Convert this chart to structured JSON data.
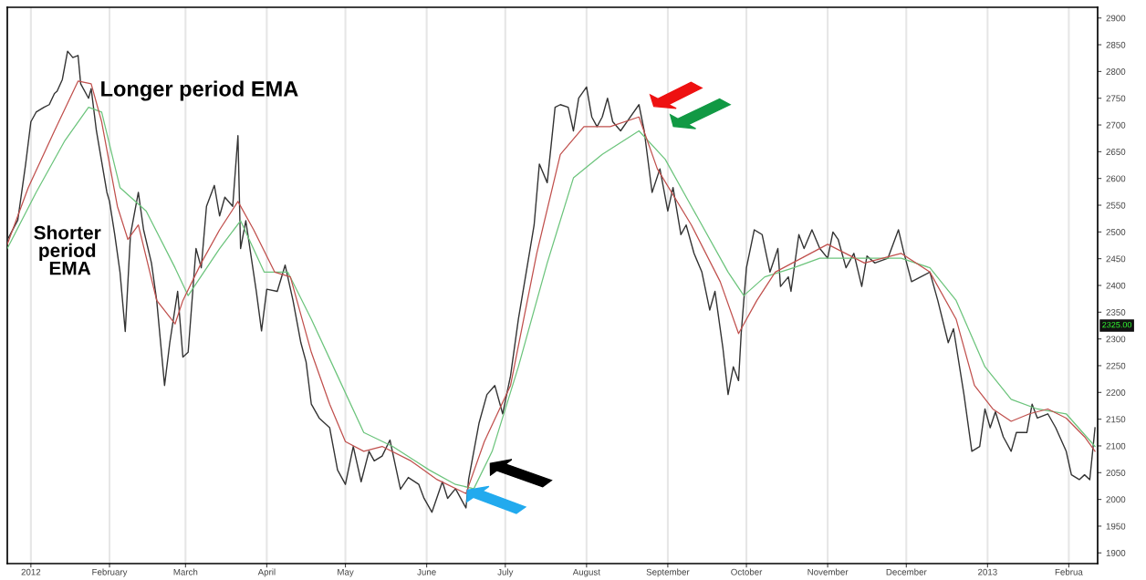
{
  "chart_data": {
    "type": "line",
    "annotations": [
      "Longer period EMA",
      "Shorter period EMA",
      "2325.00"
    ],
    "series": [
      {
        "color": "#333333",
        "x": [
          "2011-12-24",
          "2011-12-28",
          "2011-12-31",
          "2012-01-02",
          "2012-01-04",
          "2012-01-07",
          "2012-01-09",
          "2012-01-11",
          "2012-01-12",
          "2012-01-14",
          "2012-01-16",
          "2012-01-18",
          "2012-01-20",
          "2012-01-21",
          "2012-01-24",
          "2012-01-25",
          "2012-01-27",
          "2012-01-31",
          "2012-02-01",
          "2012-02-03",
          "2012-02-05",
          "2012-02-07",
          "2012-02-09",
          "2012-02-12",
          "2012-02-14",
          "2012-02-17",
          "2012-02-19",
          "2012-02-22",
          "2012-02-24",
          "2012-02-27",
          "2012-02-29",
          "2012-03-02",
          "2012-03-05",
          "2012-03-07",
          "2012-03-09",
          "2012-03-12",
          "2012-03-14",
          "2012-03-16",
          "2012-03-19",
          "2012-03-21",
          "2012-03-22",
          "2012-03-24",
          "2012-03-28",
          "2012-03-30",
          "2012-04-01",
          "2012-04-05",
          "2012-04-08",
          "2012-04-11",
          "2012-04-14",
          "2012-04-16",
          "2012-04-18",
          "2012-04-21",
          "2012-04-25",
          "2012-04-28",
          "2012-05-01",
          "2012-05-04",
          "2012-05-07",
          "2012-05-10",
          "2012-05-12",
          "2012-05-15",
          "2012-05-18",
          "2012-05-22",
          "2012-05-25",
          "2012-05-29",
          "2012-05-31",
          "2012-06-03",
          "2012-06-07",
          "2012-06-09",
          "2012-06-12",
          "2012-06-16",
          "2012-06-17",
          "2012-06-21",
          "2012-06-24",
          "2012-06-27",
          "2012-06-30",
          "2012-07-03",
          "2012-07-06",
          "2012-07-09",
          "2012-07-12",
          "2012-07-14",
          "2012-07-17",
          "2012-07-20",
          "2012-07-22",
          "2012-07-25",
          "2012-07-27",
          "2012-07-29",
          "2012-08-01",
          "2012-08-03",
          "2012-08-05",
          "2012-08-07",
          "2012-08-09",
          "2012-08-11",
          "2012-08-14",
          "2012-08-17",
          "2012-08-21",
          "2012-08-23",
          "2012-08-26",
          "2012-08-29",
          "2012-09-01",
          "2012-09-03",
          "2012-09-06",
          "2012-09-08",
          "2012-09-11",
          "2012-09-14",
          "2012-09-17",
          "2012-09-19",
          "2012-09-22",
          "2012-09-24",
          "2012-09-26",
          "2012-09-28",
          "2012-09-29",
          "2012-10-01",
          "2012-10-04",
          "2012-10-07",
          "2012-10-10",
          "2012-10-13",
          "2012-10-14",
          "2012-10-17",
          "2012-10-18",
          "2012-10-21",
          "2012-10-23",
          "2012-10-26",
          "2012-10-29",
          "2012-11-01",
          "2012-11-03",
          "2012-11-05",
          "2012-11-08",
          "2012-11-11",
          "2012-11-14",
          "2012-11-16",
          "2012-11-19",
          "2012-11-24",
          "2012-11-28",
          "2012-11-30",
          "2012-12-03",
          "2012-12-10",
          "2012-12-13",
          "2012-12-17",
          "2012-12-19",
          "2012-12-23",
          "2012-12-26",
          "2012-12-29",
          "2012-12-31",
          "2013-01-02",
          "2013-01-04",
          "2013-01-07",
          "2013-01-10",
          "2013-01-12",
          "2013-01-16",
          "2013-01-18",
          "2013-01-20",
          "2013-01-24",
          "2013-01-27",
          "2013-01-31",
          "2013-02-02",
          "2013-02-05",
          "2013-02-07",
          "2013-02-09",
          "2013-02-11"
        ],
        "values": [
          2485,
          2522,
          2627,
          2706,
          2724,
          2733,
          2738,
          2759,
          2763,
          2785,
          2838,
          2826,
          2830,
          2777,
          2750,
          2768,
          2689,
          2574,
          2557,
          2495,
          2425,
          2314,
          2495,
          2574,
          2504,
          2442,
          2372,
          2213,
          2293,
          2389,
          2266,
          2275,
          2469,
          2433,
          2548,
          2587,
          2530,
          2565,
          2548,
          2680,
          2469,
          2521,
          2389,
          2315,
          2393,
          2389,
          2438,
          2372,
          2293,
          2257,
          2178,
          2152,
          2134,
          2055,
          2028,
          2099,
          2033,
          2090,
          2072,
          2081,
          2111,
          2019,
          2041,
          2028,
          2002,
          1976,
          2033,
          2002,
          2020,
          1984,
          2037,
          2143,
          2196,
          2213,
          2160,
          2231,
          2337,
          2425,
          2513,
          2627,
          2592,
          2733,
          2738,
          2733,
          2689,
          2750,
          2771,
          2715,
          2697,
          2715,
          2750,
          2706,
          2689,
          2710,
          2738,
          2689,
          2574,
          2618,
          2539,
          2583,
          2495,
          2513,
          2460,
          2425,
          2354,
          2389,
          2284,
          2196,
          2248,
          2222,
          2310,
          2433,
          2504,
          2495,
          2425,
          2469,
          2398,
          2416,
          2389,
          2495,
          2469,
          2504,
          2469,
          2451,
          2500,
          2486,
          2433,
          2460,
          2398,
          2455,
          2442,
          2451,
          2504,
          2463,
          2407,
          2425,
          2372,
          2293,
          2319,
          2196,
          2090,
          2099,
          2169,
          2134,
          2164,
          2117,
          2090,
          2125,
          2125,
          2178,
          2152,
          2160,
          2134,
          2090,
          2046,
          2037,
          2046,
          2037,
          2134
        ]
      },
      {
        "color": "#c0504d",
        "x": [
          "2011-12-24",
          "2012-01-01",
          "2012-01-11",
          "2012-01-20",
          "2012-01-25",
          "2012-01-29",
          "2012-02-04",
          "2012-02-08",
          "2012-02-12",
          "2012-02-19",
          "2012-02-26",
          "2012-02-29",
          "2012-03-07",
          "2012-03-14",
          "2012-03-21",
          "2012-03-27",
          "2012-04-04",
          "2012-04-10",
          "2012-04-18",
          "2012-04-25",
          "2012-05-01",
          "2012-05-08",
          "2012-05-15",
          "2012-05-26",
          "2012-06-05",
          "2012-06-16",
          "2012-06-23",
          "2012-07-03",
          "2012-07-13",
          "2012-07-22",
          "2012-07-31",
          "2012-08-10",
          "2012-08-21",
          "2012-08-28",
          "2012-09-10",
          "2012-09-21",
          "2012-09-28",
          "2012-10-05",
          "2012-10-12",
          "2012-10-22",
          "2012-11-01",
          "2012-11-15",
          "2012-11-29",
          "2012-12-10",
          "2012-12-20",
          "2012-12-27",
          "2013-01-03",
          "2013-01-10",
          "2013-01-17",
          "2013-01-24",
          "2013-01-31",
          "2013-02-07",
          "2013-02-11"
        ],
        "values": [
          2477,
          2583,
          2689,
          2782,
          2777,
          2706,
          2548,
          2486,
          2513,
          2372,
          2328,
          2372,
          2442,
          2504,
          2557,
          2504,
          2425,
          2416,
          2275,
          2178,
          2108,
          2090,
          2099,
          2072,
          2037,
          2011,
          2108,
          2213,
          2460,
          2645,
          2697,
          2697,
          2715,
          2618,
          2513,
          2407,
          2310,
          2372,
          2425,
          2451,
          2477,
          2442,
          2460,
          2425,
          2337,
          2213,
          2169,
          2146,
          2160,
          2169,
          2152,
          2117,
          2090
        ]
      },
      {
        "color": "#6cc47c",
        "x": [
          "2011-12-24",
          "2012-01-04",
          "2012-01-15",
          "2012-01-24",
          "2012-01-29",
          "2012-02-05",
          "2012-02-15",
          "2012-02-26",
          "2012-03-02",
          "2012-03-14",
          "2012-03-22",
          "2012-03-31",
          "2012-04-09",
          "2012-04-18",
          "2012-04-28",
          "2012-05-08",
          "2012-05-19",
          "2012-06-02",
          "2012-06-12",
          "2012-06-19",
          "2012-06-26",
          "2012-07-06",
          "2012-07-17",
          "2012-07-27",
          "2012-08-07",
          "2012-08-21",
          "2012-08-31",
          "2012-09-10",
          "2012-09-24",
          "2012-09-30",
          "2012-10-08",
          "2012-10-19",
          "2012-10-29",
          "2012-11-12",
          "2012-11-29",
          "2012-12-10",
          "2012-12-20",
          "2012-12-31",
          "2013-01-10",
          "2013-01-20",
          "2013-01-31",
          "2013-02-11"
        ],
        "values": [
          2469,
          2574,
          2671,
          2733,
          2724,
          2583,
          2539,
          2433,
          2381,
          2469,
          2521,
          2425,
          2425,
          2337,
          2231,
          2125,
          2099,
          2055,
          2028,
          2020,
          2090,
          2248,
          2442,
          2601,
          2645,
          2689,
          2636,
          2548,
          2425,
          2381,
          2416,
          2433,
          2451,
          2451,
          2451,
          2433,
          2372,
          2248,
          2187,
          2169,
          2160,
          2099
        ]
      }
    ],
    "xlim": [
      "2011-12-24",
      "2013-02-12"
    ],
    "xticks": [
      {
        "value": "2012-01-02",
        "label": "2012"
      },
      {
        "value": "2012-02-01",
        "label": "February"
      },
      {
        "value": "2012-03-01",
        "label": "March"
      },
      {
        "value": "2012-04-01",
        "label": "April"
      },
      {
        "value": "2012-05-01",
        "label": "May"
      },
      {
        "value": "2012-06-01",
        "label": "June"
      },
      {
        "value": "2012-07-01",
        "label": "July"
      },
      {
        "value": "2012-08-01",
        "label": "August"
      },
      {
        "value": "2012-09-01",
        "label": "September"
      },
      {
        "value": "2012-10-01",
        "label": "October"
      },
      {
        "value": "2012-11-01",
        "label": "November"
      },
      {
        "value": "2012-12-01",
        "label": "December"
      },
      {
        "value": "2013-01-01",
        "label": "2013"
      },
      {
        "value": "2013-02-01",
        "label": "Februa"
      }
    ],
    "ylim": [
      1880,
      2920
    ],
    "yticks": [
      1900,
      1950,
      2000,
      2050,
      2100,
      2150,
      2200,
      2250,
      2300,
      2350,
      2400,
      2450,
      2500,
      2550,
      2600,
      2650,
      2700,
      2750,
      2800,
      2850,
      2900
    ],
    "grid": "x",
    "marker": "none",
    "line_style": "solid"
  }
}
